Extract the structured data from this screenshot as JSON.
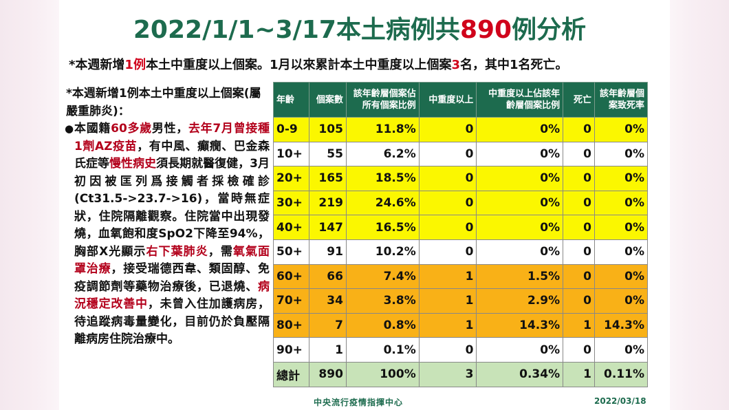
{
  "title": {
    "prefix": "2022/1/1~3/17本土病例共",
    "highlight": "890",
    "suffix": "例分析"
  },
  "subtitle": {
    "p1": "*本週新增",
    "h1": "1例",
    "p2": "本土中重度以上個案。1月以來累計本土中重度以上個案",
    "h2": "3",
    "p3": "名，其中1名死亡。"
  },
  "left_note": {
    "heading": "*本週新增1例本土中重度以上個案(屬嚴重肺炎)：",
    "bullet": "●",
    "seg1": "本國籍",
    "seg2": "60多歲",
    "seg3": "男性，",
    "seg4": "去年7月曾接種1劑AZ疫苗",
    "seg5": "，有中風、癲癇、巴金森氏症等",
    "seg6": "慢性病史",
    "seg7": "須長期就醫復健，3月初因被匡列爲接觸者採檢確診(Ct31.5->23.7->16)，當時無症狀，住院隔離觀察。住院當中出現發燒，血氧飽和度SpO2下降至94%，胸部X光顯示",
    "seg8": "右下葉肺炎",
    "seg9": "，需",
    "seg10": "氧氣面罩治療",
    "seg11": "，接受瑞德西韋、類固醇、免疫調節劑等藥物治療後，已退燒、",
    "seg12": "病況穩定改善中",
    "seg13": "，未曾入住加護病房，待追蹤病毒量變化，目前仍於負壓隔離病房住院治療中。"
  },
  "table": {
    "headers": [
      "年齡",
      "個案數",
      "該年齡層個案佔所有個案比例",
      "中重度以上",
      "中重度以上佔該年齡層個案比例",
      "死亡",
      "該年齡層個案致死率"
    ],
    "rows": [
      {
        "style": "yellow",
        "cells": [
          "0-9",
          "105",
          "11.8%",
          "0",
          "0%",
          "0",
          "0%"
        ]
      },
      {
        "style": "white",
        "cells": [
          "10+",
          "55",
          "6.2%",
          "0",
          "0%",
          "0",
          "0%"
        ]
      },
      {
        "style": "yellow",
        "cells": [
          "20+",
          "165",
          "18.5%",
          "0",
          "0%",
          "0",
          "0%"
        ]
      },
      {
        "style": "yellow",
        "cells": [
          "30+",
          "219",
          "24.6%",
          "0",
          "0%",
          "0",
          "0%"
        ]
      },
      {
        "style": "yellow",
        "cells": [
          "40+",
          "147",
          "16.5%",
          "0",
          "0%",
          "0",
          "0%"
        ]
      },
      {
        "style": "white",
        "cells": [
          "50+",
          "91",
          "10.2%",
          "0",
          "0%",
          "0",
          "0%"
        ]
      },
      {
        "style": "orange",
        "cells": [
          "60+",
          "66",
          "7.4%",
          "1",
          "1.5%",
          "0",
          "0%"
        ]
      },
      {
        "style": "orange",
        "cells": [
          "70+",
          "34",
          "3.8%",
          "1",
          "2.9%",
          "0",
          "0%"
        ]
      },
      {
        "style": "orange",
        "cells": [
          "80+",
          "7",
          "0.8%",
          "1",
          "14.3%",
          "1",
          "14.3%"
        ]
      },
      {
        "style": "white",
        "cells": [
          "90+",
          "1",
          "0.1%",
          "0",
          "0%",
          "0",
          "0%"
        ]
      },
      {
        "style": "green",
        "cells": [
          "總計",
          "890",
          "100%",
          "3",
          "0.34%",
          "1",
          "0.11%"
        ]
      }
    ]
  },
  "footer": {
    "org": "中央流行疫情指揮中心",
    "date": "2022/03/18"
  },
  "colors": {
    "title_green": "#1d6b4e",
    "highlight_red": "#d0021b",
    "row_yellow": "#fbf700",
    "row_orange": "#f9b117",
    "row_green": "#c8e3b8"
  }
}
